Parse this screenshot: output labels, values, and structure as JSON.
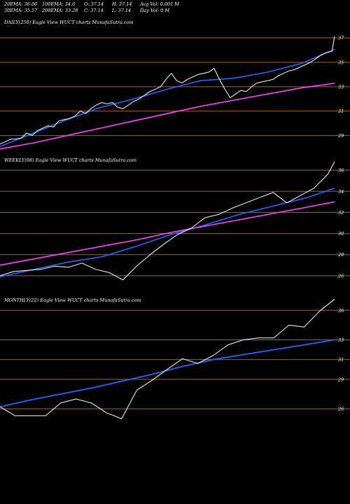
{
  "header": {
    "stats": [
      [
        "20EMA: 36.06",
        "100EMA: 34.6",
        "O: 37.14",
        "H: 37.14",
        "Avg Vol: 0.001 M"
      ],
      [
        "30EMA: 35.57",
        "200EMA: 33.28",
        "C: 37.14",
        "L: 37.14",
        "Day Vol: 0  M"
      ]
    ]
  },
  "colors": {
    "background": "#000000",
    "price": "#ffffff",
    "ema_short": "#2266ff",
    "ema_long": "#ff44ff",
    "gridline": "#b0621a"
  },
  "chart_data": [
    {
      "type": "line",
      "title": "DAILY(250) Eagle  View  WUCT charts MunafaSutra.com",
      "y_ticks": [
        37,
        35,
        33,
        31,
        29
      ],
      "ylim": [
        27.6,
        38.5
      ],
      "series": [
        {
          "role": "price",
          "color": "#ffffff",
          "width": 1,
          "x": [
            0,
            4,
            8,
            12,
            16,
            20,
            24,
            28,
            32,
            36,
            40,
            44,
            48,
            52,
            56,
            60,
            64,
            68,
            72,
            76,
            80,
            84,
            88,
            92,
            96,
            100,
            104,
            108,
            112,
            116,
            120,
            124,
            128,
            132,
            136,
            140,
            144,
            148,
            152,
            156,
            160,
            164,
            168,
            172,
            176,
            180,
            184,
            188,
            192,
            196,
            200,
            204,
            208,
            212,
            216,
            220,
            224,
            228,
            232,
            236,
            240,
            244,
            248,
            250
          ],
          "y": [
            28.3,
            28.5,
            28.7,
            28.7,
            28.8,
            29.2,
            29.0,
            29.4,
            29.6,
            29.8,
            29.7,
            30.2,
            30.3,
            30.4,
            30.6,
            31.0,
            30.8,
            31.2,
            31.5,
            31.7,
            31.6,
            31.7,
            31.3,
            31.2,
            31.5,
            31.8,
            32.0,
            32.3,
            32.6,
            32.8,
            33.0,
            33.6,
            34.1,
            33.5,
            33.3,
            33.6,
            33.8,
            34.0,
            34.1,
            34.2,
            34.5,
            33.6,
            32.8,
            32.1,
            32.4,
            32.7,
            32.6,
            33.0,
            33.3,
            33.4,
            33.5,
            33.6,
            33.9,
            34.1,
            34.3,
            34.4,
            34.6,
            34.8,
            35.0,
            35.3,
            35.6,
            35.8,
            35.9,
            37.14
          ]
        },
        {
          "role": "ema-short",
          "color": "#2266ff",
          "width": 1.6,
          "x": [
            0,
            25,
            50,
            75,
            100,
            125,
            150,
            175,
            200,
            225,
            250
          ],
          "y": [
            28.1,
            29.2,
            30.3,
            31.3,
            32.0,
            32.8,
            33.5,
            33.7,
            34.2,
            34.9,
            36.06
          ]
        },
        {
          "role": "ema-long",
          "color": "#ff44ff",
          "width": 1.6,
          "x": [
            0,
            25,
            50,
            75,
            100,
            125,
            150,
            175,
            200,
            225,
            250
          ],
          "y": [
            27.9,
            28.4,
            29.0,
            29.6,
            30.2,
            30.8,
            31.4,
            31.9,
            32.4,
            32.9,
            33.28
          ]
        }
      ]
    },
    {
      "type": "line",
      "title": "WEEKLY(98) Eagle  View  WUCT charts MunafaSutra.com",
      "y_ticks": [
        36,
        34,
        32,
        30,
        28,
        26
      ],
      "ylim": [
        24.6,
        37.2
      ],
      "series": [
        {
          "role": "price",
          "color": "#ffffff",
          "width": 1,
          "x": [
            0,
            4,
            8,
            12,
            16,
            20,
            24,
            28,
            32,
            36,
            40,
            44,
            48,
            52,
            56,
            60,
            64,
            68,
            72,
            76,
            80,
            84,
            88,
            92,
            96,
            98
          ],
          "y": [
            26.0,
            26.4,
            26.5,
            26.6,
            26.9,
            26.8,
            27.2,
            26.6,
            26.3,
            25.6,
            26.9,
            28.0,
            29.0,
            29.9,
            30.5,
            31.5,
            31.8,
            32.4,
            32.9,
            33.4,
            33.9,
            32.9,
            33.6,
            34.3,
            35.6,
            36.8
          ]
        },
        {
          "role": "ema-short",
          "color": "#2266ff",
          "width": 1.6,
          "x": [
            0,
            10,
            20,
            30,
            40,
            50,
            60,
            70,
            80,
            90,
            98
          ],
          "y": [
            25.9,
            26.6,
            27.3,
            27.8,
            28.8,
            29.9,
            30.8,
            31.8,
            32.6,
            33.4,
            34.3
          ]
        },
        {
          "role": "ema-long",
          "color": "#ff44ff",
          "width": 1.6,
          "x": [
            0,
            10,
            20,
            30,
            40,
            50,
            60,
            70,
            80,
            90,
            98
          ],
          "y": [
            27.0,
            27.6,
            28.2,
            28.8,
            29.4,
            30.1,
            30.7,
            31.3,
            31.9,
            32.5,
            33.0
          ]
        }
      ]
    },
    {
      "type": "line",
      "title": "MONTHLY(22) Eagle  View  WUCT charts MunafaSutra.com",
      "y_ticks": [
        36,
        33,
        31,
        29,
        26
      ],
      "ylim": [
        23.8,
        37.3
      ],
      "series": [
        {
          "role": "price",
          "color": "#ffffff",
          "width": 1,
          "x": [
            0,
            1,
            2,
            3,
            4,
            5,
            6,
            7,
            8,
            9,
            10,
            11,
            12,
            13,
            14,
            15,
            16,
            17,
            18,
            19,
            20,
            21,
            22
          ],
          "y": [
            26.2,
            25.3,
            25.3,
            25.3,
            26.6,
            27.0,
            26.6,
            25.6,
            25.0,
            27.9,
            28.9,
            30.0,
            31.1,
            30.6,
            31.4,
            32.5,
            33.0,
            33.2,
            33.2,
            34.5,
            34.3,
            35.9,
            37.14
          ]
        },
        {
          "role": "ema-short",
          "color": "#2266ff",
          "width": 1.8,
          "x": [
            0,
            2,
            4,
            6,
            8,
            10,
            12,
            14,
            16,
            18,
            20,
            22
          ],
          "y": [
            26.2,
            26.9,
            27.5,
            28.1,
            28.8,
            29.5,
            30.3,
            31.0,
            31.5,
            32.0,
            32.5,
            33.0
          ]
        }
      ]
    }
  ]
}
